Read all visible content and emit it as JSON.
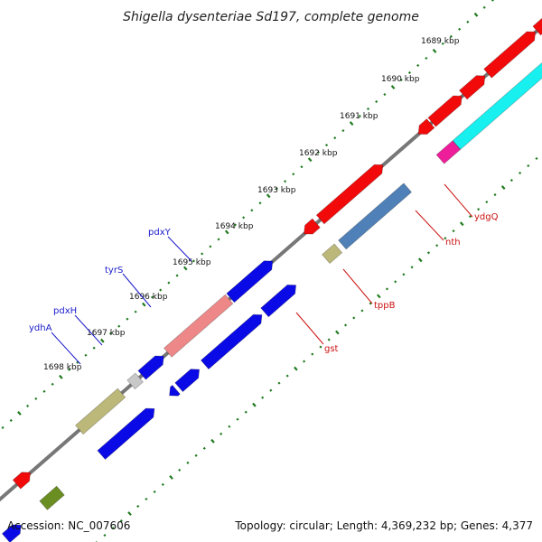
{
  "title": "Shigella dysenteriae Sd197, complete genome",
  "footer": {
    "accession": "Accession: NC_007606",
    "summary": "Topology: circular; Length: 4,369,232 bp; Genes: 4,377"
  },
  "kbp_labels": [
    "1689 kbp",
    "1690 kbp",
    "1691 kbp",
    "1692 kbp",
    "1693 kbp",
    "1694 kbp",
    "1695 kbp",
    "1696 kbp",
    "1697 kbp",
    "1698 kbp"
  ],
  "gene_labels": [
    "ydhA",
    "pdxH",
    "tyrS",
    "pdxY",
    "gst",
    "tppB",
    "nth",
    "ydgQ"
  ],
  "colors": {
    "blue": "#0a0ae6",
    "red": "#f20a0a",
    "salmon": "#ee8888",
    "steel": "#4f81b8",
    "khaki": "#bcb87a",
    "olive": "#6b8e23",
    "cyan": "#18f0f0",
    "magenta": "#ee1e9a",
    "gray": "#c8c8c8",
    "backbone": "#777777",
    "tick": "#1f7a1f"
  }
}
